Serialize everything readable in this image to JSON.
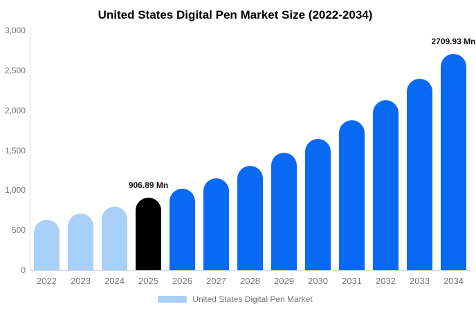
{
  "legend": {
    "label": "United States Digital Pen Market",
    "swatch_color": "#a8d0f8"
  },
  "colors": {
    "historical": "#a8d0f8",
    "base_year": "#000000",
    "forecast": "#0a69f2",
    "axis_line": "#d9d9d9",
    "tick_text": "#757575",
    "annotation_text": "#111111"
  },
  "chart_data": {
    "type": "bar",
    "title": "United States Digital Pen Market Size (2022-2034)",
    "unit": "Mn",
    "categories": [
      "2022",
      "2023",
      "2024",
      "2025",
      "2026",
      "2027",
      "2028",
      "2029",
      "2030",
      "2031",
      "2032",
      "2033",
      "2034"
    ],
    "values": [
      630,
      710,
      798,
      906.89,
      1022,
      1150,
      1305,
      1472,
      1640,
      1875,
      2125,
      2395,
      2709.93
    ],
    "color_groups": [
      "historical",
      "historical",
      "historical",
      "base_year",
      "forecast",
      "forecast",
      "forecast",
      "forecast",
      "forecast",
      "forecast",
      "forecast",
      "forecast",
      "forecast"
    ],
    "ylim": [
      0,
      3000
    ],
    "ytick_labels": [
      "0",
      "500",
      "1,000",
      "1,500",
      "2,000",
      "2,500",
      "3,000"
    ],
    "ytick_values": [
      0,
      500,
      1000,
      1500,
      2000,
      2500,
      3000
    ],
    "grid": false,
    "legend_position": "bottom",
    "annotations": [
      {
        "category": "2025",
        "text": "906.89 Mn"
      },
      {
        "category": "2034",
        "text": "2709.93 Mn"
      }
    ]
  }
}
